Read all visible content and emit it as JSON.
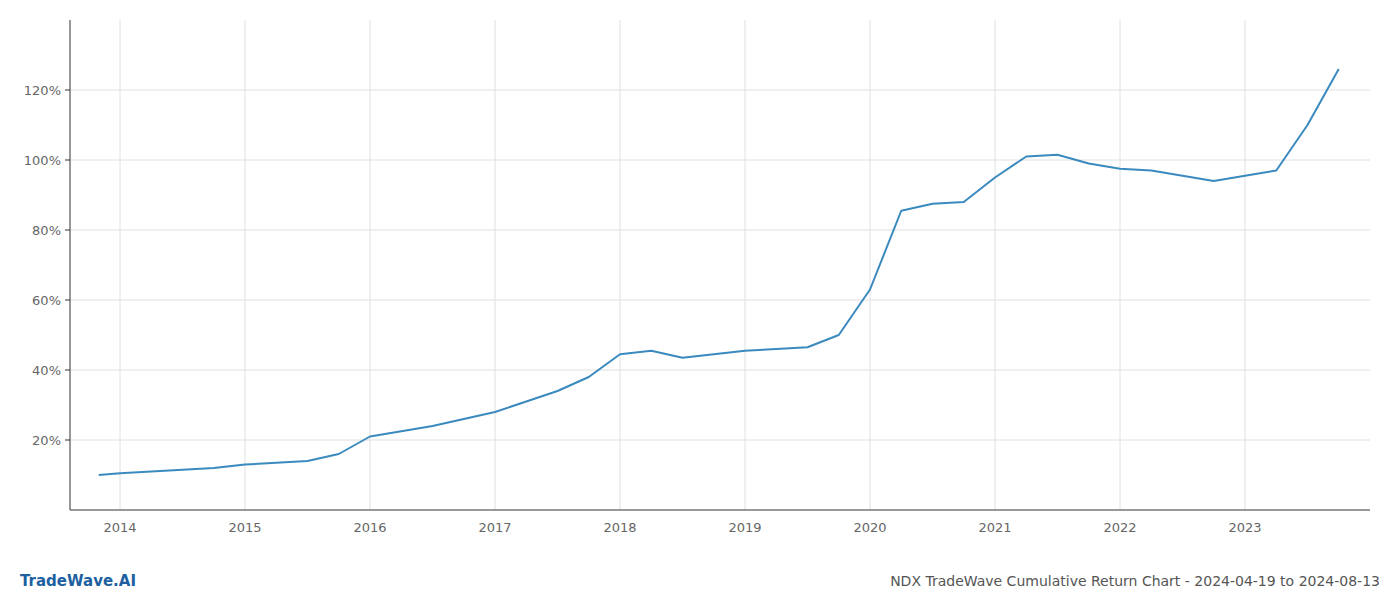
{
  "chart_data": {
    "type": "line",
    "title": "NDX TradeWave Cumulative Return Chart - 2024-04-19 to 2024-08-13",
    "annotations": [
      "TradeWave.AI"
    ],
    "x": [
      2013.83,
      2014.0,
      2014.25,
      2014.5,
      2014.75,
      2015.0,
      2015.25,
      2015.5,
      2015.75,
      2016.0,
      2016.25,
      2016.5,
      2016.75,
      2017.0,
      2017.25,
      2017.5,
      2017.75,
      2018.0,
      2018.25,
      2018.5,
      2018.75,
      2019.0,
      2019.25,
      2019.5,
      2019.75,
      2020.0,
      2020.25,
      2020.5,
      2020.75,
      2021.0,
      2021.25,
      2021.5,
      2021.75,
      2022.0,
      2022.25,
      2022.5,
      2022.75,
      2023.0,
      2023.25,
      2023.5,
      2023.75
    ],
    "values": [
      10.0,
      10.5,
      11.0,
      11.5,
      12.0,
      13.0,
      13.5,
      14.0,
      16.0,
      21.0,
      22.5,
      24.0,
      26.0,
      28.0,
      31.0,
      34.0,
      38.0,
      44.5,
      45.5,
      43.5,
      44.5,
      45.5,
      46.0,
      46.5,
      50.0,
      63.0,
      85.5,
      87.5,
      88.0,
      95.0,
      101.0,
      101.5,
      99.0,
      97.5,
      97.0,
      95.5,
      94.0,
      95.5,
      97.0,
      110.0,
      126.0
    ],
    "color": "#3a8abf",
    "xlim": [
      2013.6,
      2024.0
    ],
    "xticks": [
      2014,
      2015,
      2016,
      2017,
      2018,
      2019,
      2020,
      2021,
      2022,
      2023
    ],
    "ylim": [
      0,
      140
    ],
    "yticks": [
      {
        "value": 20,
        "label": "20%"
      },
      {
        "value": 40,
        "label": "40%"
      },
      {
        "value": 60,
        "label": "60%"
      },
      {
        "value": 80,
        "label": "80%"
      },
      {
        "value": 100,
        "label": "100%"
      },
      {
        "value": 120,
        "label": "120%"
      }
    ],
    "grid": true
  }
}
